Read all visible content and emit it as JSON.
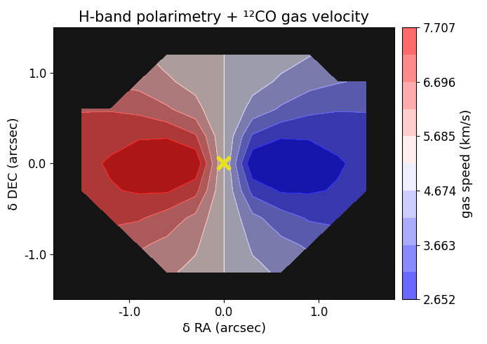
{
  "chart_data": {
    "type": "contour",
    "title": "H-band polarimetry + ¹²CO gas velocity",
    "x_label": "δ RA (arcsec)",
    "y_label": "δ DEC (arcsec)",
    "xlim": [
      -1.8,
      1.8
    ],
    "ylim": [
      -1.5,
      1.5
    ],
    "xticks": [
      {
        "value": -1.0,
        "label": "-1.0"
      },
      {
        "value": 0.0,
        "label": "0.0"
      },
      {
        "value": 1.0,
        "label": "1.0"
      }
    ],
    "yticks": [
      {
        "value": -1.0,
        "label": "-1.0"
      },
      {
        "value": 0.0,
        "label": "0.0"
      },
      {
        "value": 1.0,
        "label": "1.0"
      }
    ],
    "color": "bwr",
    "x": [
      -1.5,
      -1.2,
      -0.9,
      -0.6,
      -0.3,
      0.0,
      0.3,
      0.6,
      0.9,
      1.2,
      1.5
    ],
    "y": [
      1.2,
      0.9,
      0.6,
      0.3,
      0.0,
      -0.3,
      -0.6,
      -0.9,
      -1.2
    ],
    "cells": [
      [
        null,
        null,
        null,
        5.51,
        5.36,
        5.18,
        5.0,
        4.85,
        4.7,
        null,
        null
      ],
      [
        null,
        null,
        6.01,
        5.76,
        5.51,
        5.18,
        4.85,
        4.6,
        4.35,
        4.2,
        4.1
      ],
      [
        6.66,
        6.66,
        6.56,
        6.26,
        5.86,
        5.18,
        4.5,
        4.1,
        3.8,
        3.7,
        3.7
      ],
      [
        6.96,
        7.06,
        7.16,
        7.16,
        6.76,
        5.18,
        3.6,
        3.2,
        3.2,
        3.3,
        3.4
      ],
      [
        7.06,
        7.26,
        7.46,
        7.66,
        7.66,
        5.18,
        2.7,
        2.7,
        2.9,
        3.1,
        3.3
      ],
      [
        7.06,
        7.16,
        7.26,
        7.26,
        6.86,
        5.18,
        3.5,
        3.1,
        3.1,
        3.2,
        3.3
      ],
      [
        null,
        6.86,
        6.76,
        6.46,
        6.06,
        5.18,
        4.3,
        3.9,
        3.6,
        3.5,
        null
      ],
      [
        null,
        null,
        6.26,
        6.06,
        5.76,
        5.18,
        4.6,
        4.3,
        4.1,
        null,
        null
      ],
      [
        null,
        null,
        null,
        5.76,
        5.56,
        5.18,
        4.8,
        4.6,
        null,
        null,
        null
      ]
    ],
    "colorbar": {
      "label": "gas speed (km/s)",
      "range": [
        2.652,
        7.707
      ],
      "ticks": [
        2.652,
        3.663,
        4.674,
        5.685,
        6.696,
        7.707
      ],
      "levels": [
        2.652,
        3.1575,
        3.663,
        4.1685,
        4.674,
        5.1795,
        5.685,
        6.1905,
        6.696,
        7.2015,
        7.707
      ]
    },
    "star": {
      "x": 0.0,
      "y": 0.0,
      "marker": "x",
      "color": "#e8e020"
    }
  }
}
